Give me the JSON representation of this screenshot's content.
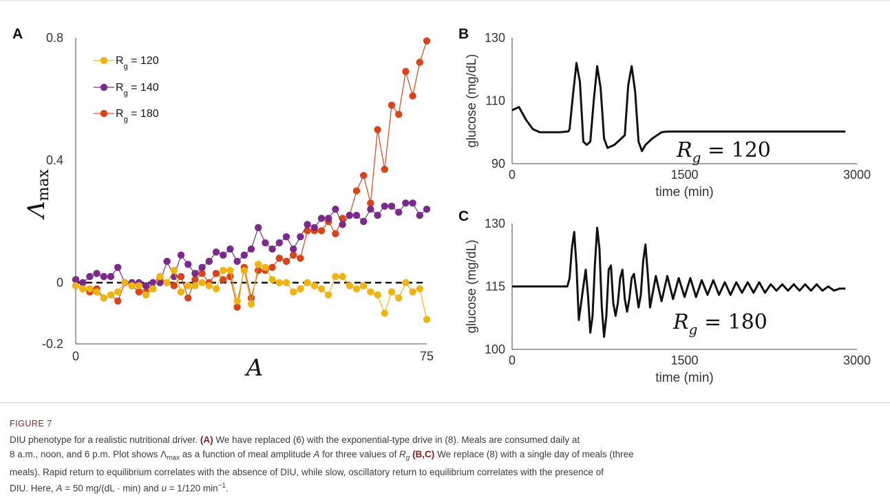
{
  "chart_data": [
    {
      "panel": "A",
      "type": "line",
      "ylabel": "Λmax",
      "xlabel": "A",
      "xlim": [
        0,
        75
      ],
      "ylim": [
        -0.2,
        0.8
      ],
      "yticks": [
        "0.8",
        "0.4",
        "0",
        "-0.2"
      ],
      "xticks": [
        "0",
        "75"
      ],
      "reference_line": {
        "y": 0,
        "style": "dashed"
      },
      "legend_position": "top-left",
      "series": [
        {
          "name": "R_g = 120",
          "label_main": "R",
          "label_sub": "g",
          "label_rest": " = 120",
          "color": "#f0b312",
          "x": [
            0,
            1.5,
            3,
            4.5,
            6,
            7.5,
            9,
            10.5,
            12,
            13.5,
            15,
            16.5,
            18,
            19.5,
            21,
            22.5,
            24,
            25.5,
            27,
            28.5,
            30,
            31.5,
            33,
            34.5,
            36,
            37.5,
            39,
            40.5,
            42,
            43.5,
            45,
            46.5,
            48,
            49.5,
            51,
            52.5,
            54,
            55.5,
            57,
            58.5,
            60,
            61.5,
            63,
            64.5,
            66,
            67.5,
            69,
            70.5,
            72,
            73.5,
            75
          ],
          "y": [
            -0.01,
            -0.02,
            -0.02,
            -0.03,
            -0.05,
            -0.04,
            -0.03,
            0.0,
            -0.01,
            -0.01,
            -0.04,
            -0.02,
            0.02,
            0.0,
            0.04,
            -0.03,
            -0.01,
            -0.01,
            0.0,
            -0.01,
            -0.02,
            0.04,
            0.04,
            -0.06,
            0.04,
            -0.07,
            0.06,
            0.05,
            0.01,
            0.0,
            0.0,
            -0.03,
            -0.02,
            0.0,
            -0.01,
            -0.02,
            -0.04,
            0.02,
            0.02,
            -0.01,
            -0.02,
            -0.01,
            -0.03,
            -0.04,
            -0.1,
            -0.03,
            -0.05,
            0.0,
            -0.03,
            -0.02,
            -0.12
          ]
        },
        {
          "name": "R_g = 140",
          "label_main": "R",
          "label_sub": "g",
          "label_rest": " = 140",
          "color": "#7a2a8a",
          "x": [
            0,
            1.5,
            3,
            4.5,
            6,
            7.5,
            9,
            10.5,
            12,
            13.5,
            15,
            16.5,
            18,
            19.5,
            21,
            22.5,
            24,
            25.5,
            27,
            28.5,
            30,
            31.5,
            33,
            34.5,
            36,
            37.5,
            39,
            40.5,
            42,
            43.5,
            45,
            46.5,
            48,
            49.5,
            51,
            52.5,
            54,
            55.5,
            57,
            58.5,
            60,
            61.5,
            63,
            64.5,
            66,
            67.5,
            69,
            70.5,
            72,
            73.5,
            75
          ],
          "y": [
            0.01,
            0.0,
            0.02,
            0.03,
            0.02,
            0.02,
            0.05,
            0.0,
            0.0,
            0.0,
            -0.01,
            0.0,
            0.0,
            0.07,
            0.02,
            0.09,
            0.06,
            0.03,
            0.05,
            0.07,
            0.1,
            0.09,
            0.11,
            0.07,
            0.09,
            0.11,
            0.18,
            0.13,
            0.11,
            0.13,
            0.15,
            0.11,
            0.15,
            0.19,
            0.18,
            0.21,
            0.21,
            0.24,
            0.19,
            0.22,
            0.22,
            0.2,
            0.24,
            0.22,
            0.25,
            0.25,
            0.23,
            0.26,
            0.26,
            0.22,
            0.24
          ]
        },
        {
          "name": "R_g = 180",
          "label_main": "R",
          "label_sub": "g",
          "label_rest": " = 180",
          "color": "#d9431a",
          "x": [
            0,
            1.5,
            3,
            4.5,
            6,
            7.5,
            9,
            10.5,
            12,
            13.5,
            15,
            16.5,
            18,
            19.5,
            21,
            22.5,
            24,
            25.5,
            27,
            28.5,
            30,
            31.5,
            33,
            34.5,
            36,
            37.5,
            39,
            40.5,
            42,
            43.5,
            45,
            46.5,
            48,
            49.5,
            51,
            52.5,
            54,
            55.5,
            57,
            58.5,
            60,
            61.5,
            63,
            64.5,
            66,
            67.5,
            69,
            70.5,
            72,
            73.5,
            75
          ],
          "y": [
            -0.01,
            -0.02,
            -0.03,
            -0.02,
            -0.05,
            -0.04,
            -0.06,
            0.0,
            -0.01,
            -0.03,
            -0.03,
            0.0,
            0.01,
            0.0,
            -0.01,
            0.02,
            -0.05,
            0.01,
            0.03,
            0.0,
            0.03,
            0.01,
            0.02,
            -0.08,
            0.05,
            -0.05,
            0.04,
            0.04,
            0.05,
            0.08,
            0.07,
            0.09,
            0.08,
            0.17,
            0.17,
            0.17,
            0.2,
            0.16,
            0.21,
            0.22,
            0.3,
            0.35,
            0.26,
            0.5,
            0.37,
            0.58,
            0.55,
            0.69,
            0.61,
            0.72,
            0.79
          ]
        }
      ]
    },
    {
      "panel": "B",
      "type": "line",
      "ylabel": "glucose (mg/dL)",
      "xlabel": "time (min)",
      "xlim": [
        0,
        3000
      ],
      "ylim": [
        90,
        130
      ],
      "yticks": [
        "130",
        "110",
        "90"
      ],
      "xticks": [
        "0",
        "1500",
        "3000"
      ],
      "annotation": {
        "main": "R",
        "sub": "g",
        "rest": " = 120"
      },
      "series": [
        {
          "color": "#111111",
          "x": [
            0,
            60,
            120,
            180,
            240,
            300,
            360,
            420,
            480,
            490,
            500,
            530,
            560,
            590,
            620,
            650,
            680,
            710,
            740,
            770,
            800,
            830,
            860,
            890,
            920,
            950,
            980,
            1010,
            1040,
            1070,
            1100,
            1130,
            1160,
            1190,
            1220,
            1260,
            1300,
            1350,
            1400,
            1500,
            1600,
            1800,
            2000,
            2200,
            2400,
            2600,
            2800,
            2900
          ],
          "y": [
            107,
            108,
            104,
            101,
            100,
            100,
            100,
            100,
            100.2,
            100.3,
            101,
            112,
            122,
            116,
            97,
            96,
            97,
            110,
            121,
            114,
            98,
            95,
            95.5,
            96,
            97,
            98,
            99,
            115,
            121,
            113,
            97,
            94,
            96,
            97,
            98,
            99,
            100,
            100.2,
            100.2,
            100.2,
            100.2,
            100.2,
            100.2,
            100.2,
            100.2,
            100.2,
            100.2,
            100.2
          ]
        }
      ]
    },
    {
      "panel": "C",
      "type": "line",
      "ylabel": "glucose (mg/dL)",
      "xlabel": "time (min)",
      "xlim": [
        0,
        3000
      ],
      "ylim": [
        100,
        130
      ],
      "yticks": [
        "130",
        "115",
        "100"
      ],
      "xticks": [
        "0",
        "1500",
        "3000"
      ],
      "annotation": {
        "main": "R",
        "sub": "g",
        "rest": " = 180"
      },
      "series": [
        {
          "color": "#111111",
          "x": [
            0,
            100,
            200,
            300,
            400,
            480,
            500,
            520,
            540,
            560,
            580,
            600,
            620,
            640,
            660,
            680,
            700,
            720,
            740,
            760,
            780,
            800,
            820,
            840,
            860,
            880,
            900,
            920,
            940,
            960,
            980,
            1000,
            1020,
            1040,
            1060,
            1080,
            1100,
            1120,
            1140,
            1160,
            1180,
            1200,
            1250,
            1300,
            1350,
            1400,
            1450,
            1500,
            1550,
            1600,
            1650,
            1700,
            1750,
            1800,
            1850,
            1900,
            1950,
            2000,
            2050,
            2100,
            2150,
            2200,
            2250,
            2300,
            2350,
            2400,
            2450,
            2500,
            2550,
            2600,
            2650,
            2700,
            2750,
            2800,
            2850,
            2900
          ],
          "y": [
            115,
            115,
            115,
            115,
            115,
            115,
            117,
            124,
            128,
            120,
            107,
            111,
            115,
            119,
            113,
            104,
            108,
            120,
            129,
            124,
            110,
            103,
            108,
            119,
            120,
            111,
            108,
            111,
            117,
            119,
            112,
            109,
            112,
            117,
            118,
            114,
            110,
            113,
            121,
            125,
            118,
            110,
            117.5,
            111.5,
            117.5,
            112,
            117,
            112.5,
            117,
            112.5,
            116.5,
            113,
            116.5,
            113,
            116,
            113,
            116,
            113.5,
            116,
            113.5,
            116,
            113.5,
            115.5,
            114,
            115.5,
            114,
            115.5,
            114,
            115.5,
            114,
            115.5,
            114,
            115,
            114,
            114.5,
            114.5
          ]
        }
      ]
    }
  ],
  "caption": {
    "label": "FIGURE 7",
    "lines": [
      [
        {
          "t": "DIU phenotype for a realistic nutritional driver. "
        },
        {
          "t": "(A)",
          "b": true
        },
        {
          "t": " We have replaced (6) with the exponential-type drive in (8). Meals are consumed daily at"
        }
      ],
      [
        {
          "t": "8 a.m., noon, and 6 p.m. Plot shows Λ"
        },
        {
          "t": "max",
          "sub": true
        },
        {
          "t": " as a function of meal amplitude "
        },
        {
          "t": "A",
          "i": true
        },
        {
          "t": " for three values of "
        },
        {
          "t": "R",
          "i": true
        },
        {
          "t": "g",
          "sub": true,
          "i": true
        },
        {
          "t": " "
        },
        {
          "t": "(B,C)",
          "b": true
        },
        {
          "t": " We replace (8) with a single day of meals (three"
        }
      ],
      [
        {
          "t": "meals). Rapid return to equilibrium correlates with the absence of DIU, while slow, oscillatory return to equilibrium correlates with the presence of"
        }
      ],
      [
        {
          "t": "DIU. Here, "
        },
        {
          "t": "A",
          "i": true
        },
        {
          "t": " = 50 mg/(dL · min) and "
        },
        {
          "t": "υ",
          "i": true
        },
        {
          "t": " = 1/120 min"
        },
        {
          "t": "−1",
          "sup": true
        },
        {
          "t": "."
        }
      ]
    ]
  }
}
